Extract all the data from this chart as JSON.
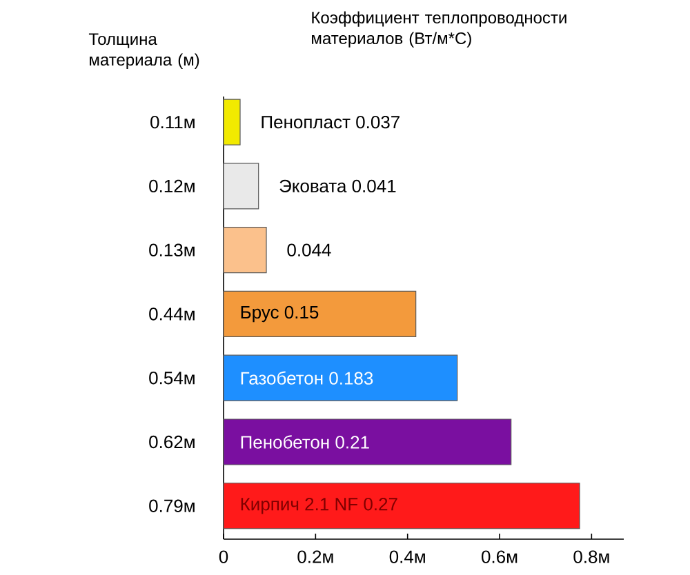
{
  "chart_data": {
    "type": "bar",
    "orientation": "horizontal",
    "title": "Коэффициент теплопроводности материалов (Вт/м*С)",
    "ylabel": "Толщина материала (м)",
    "categories": [
      "0.11м",
      "0.12м",
      "0.13м",
      "0.44м",
      "0.54м",
      "0.62м",
      "0.79м"
    ],
    "values": [
      0.036,
      0.076,
      0.093,
      0.418,
      0.508,
      0.625,
      0.774
    ],
    "colors": [
      "#f2ea00",
      "#e9e9e9",
      "#fbc18c",
      "#f39a3c",
      "#1e8fff",
      "#7a0fa0",
      "#ff1a1a"
    ],
    "xlim": [
      0,
      0.87
    ],
    "xticks": [
      {
        "value": 0,
        "label": "0"
      },
      {
        "value": 0.2,
        "label": "0.2м"
      },
      {
        "value": 0.4,
        "label": "0.4м"
      },
      {
        "value": 0.6,
        "label": "0.6м"
      },
      {
        "value": 0.8,
        "label": "0.8м"
      }
    ],
    "annotations": [
      "Пенопласт  0.037",
      "Эковата 0.041",
      "0.044",
      "Брус  0.15",
      "Газобетон  0.183",
      "Пенобетон  0.21",
      "Кирпич 2.1 NF  0.27"
    ]
  }
}
